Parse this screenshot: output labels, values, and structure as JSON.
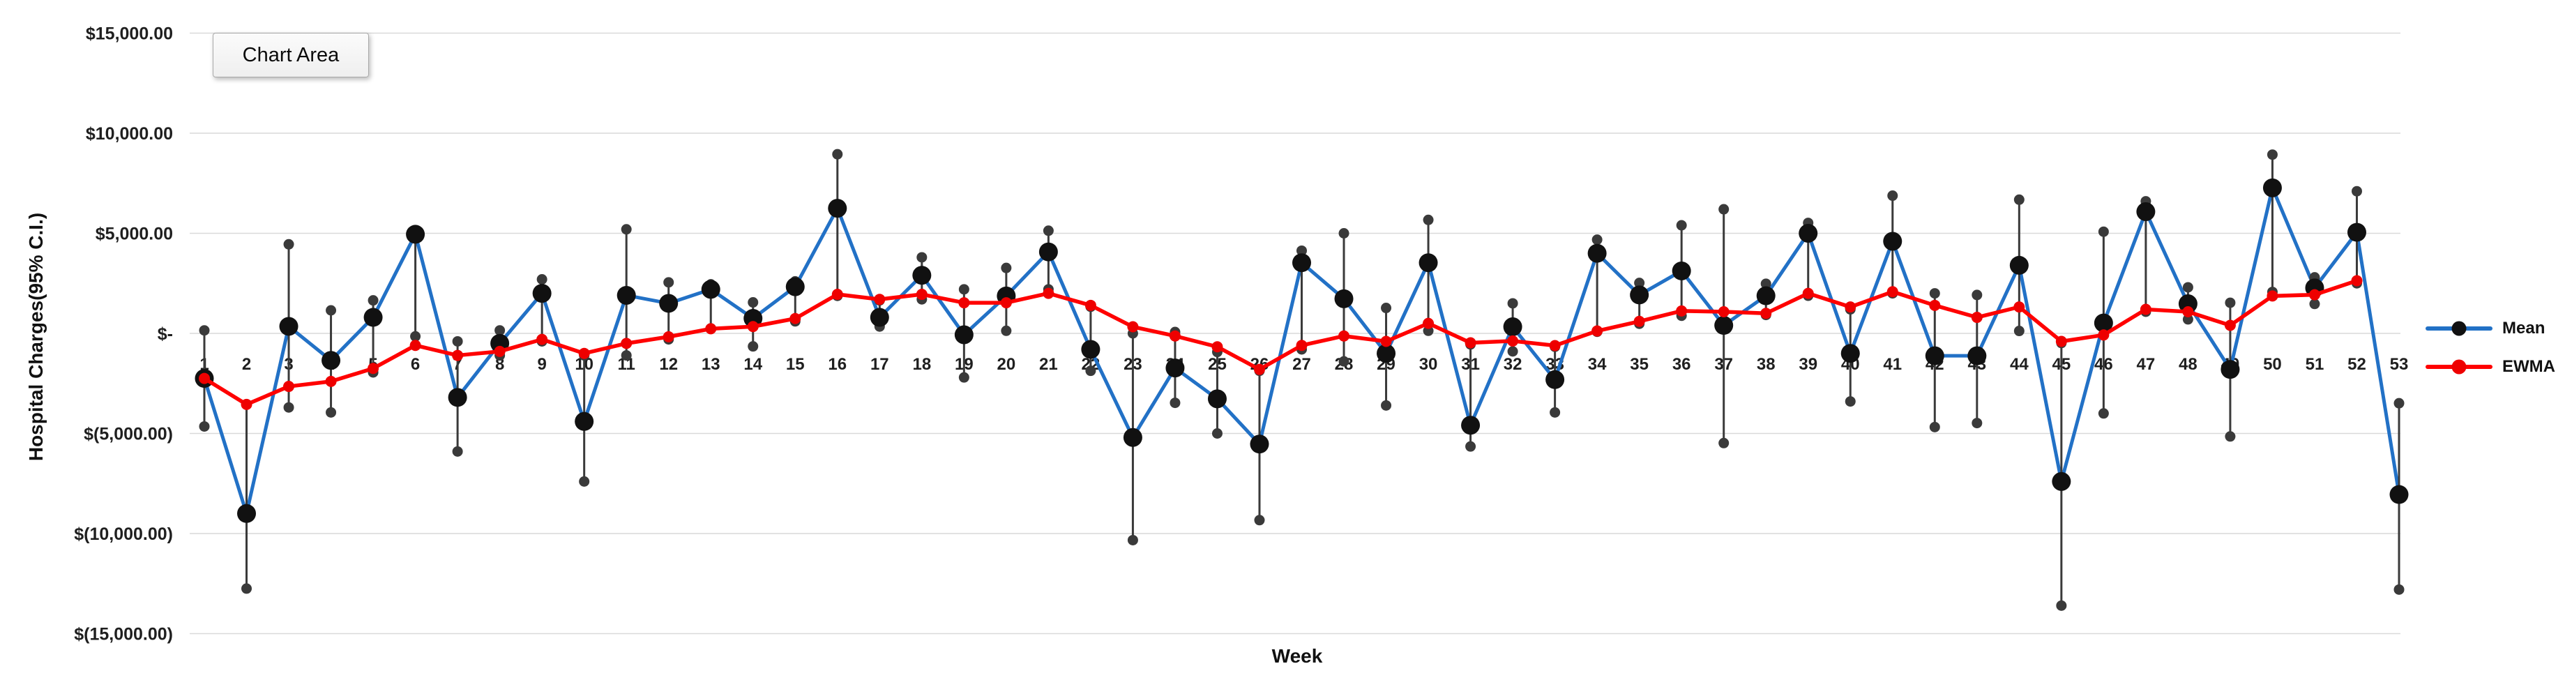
{
  "tooltip": {
    "text": "Chart Area"
  },
  "legend": {
    "items": [
      {
        "label": "Mean",
        "line_color": "#2271C6",
        "marker_color": "#111111"
      },
      {
        "label": "EWMA",
        "line_color": "#FF0000",
        "marker_color": "#EE0000"
      }
    ]
  },
  "colors": {
    "mean_line": "#2271C6",
    "mean_marker": "#111111",
    "ewma_line": "#FF0000",
    "ewma_marker": "#EE0000",
    "error_bar": "#3A3A3A",
    "gridline": "#D9D9D9",
    "tick_text": "#1F1F1F"
  },
  "chart_data": {
    "type": "line",
    "title": "",
    "xlabel": "Week",
    "ylabel": "Hospital Charges(95% C.I.)",
    "ylim": [
      -15000,
      15000
    ],
    "grid": true,
    "legend_position": "right",
    "y_ticks": [
      {
        "value": 15000,
        "label": "$15,000.00"
      },
      {
        "value": 10000,
        "label": "$10,000.00"
      },
      {
        "value": 5000,
        "label": "$5,000.00"
      },
      {
        "value": 0,
        "label": "$-"
      },
      {
        "value": -5000,
        "label": "$(5,000.00)"
      },
      {
        "value": -10000,
        "label": "$(10,000.00)"
      },
      {
        "value": -15000,
        "label": "$(15,000.00)"
      }
    ],
    "x": [
      1,
      2,
      3,
      4,
      5,
      6,
      7,
      8,
      9,
      10,
      11,
      12,
      13,
      14,
      15,
      16,
      17,
      18,
      19,
      20,
      21,
      22,
      23,
      24,
      25,
      26,
      27,
      28,
      29,
      30,
      31,
      32,
      33,
      34,
      35,
      36,
      37,
      38,
      39,
      40,
      41,
      42,
      43,
      44,
      45,
      46,
      47,
      48,
      49,
      50,
      51,
      52,
      53
    ],
    "series": [
      {
        "name": "Mean",
        "values": [
          -2250,
          -9000,
          350,
          -1350,
          800,
          4950,
          -3200,
          -500,
          2000,
          -4400,
          1900,
          1500,
          2200,
          750,
          2330,
          6250,
          800,
          2900,
          -70,
          1870,
          4070,
          -800,
          -5200,
          -1730,
          -3270,
          -5530,
          3530,
          1730,
          -1000,
          3530,
          -4590,
          330,
          -2310,
          4000,
          1920,
          3120,
          400,
          1880,
          5000,
          -1000,
          4600,
          -1120,
          -1120,
          3400,
          -7400,
          520,
          6080,
          1480,
          -1800,
          7270,
          2270,
          5050,
          -8050
        ],
        "ci_low": [
          -4650,
          -12750,
          -3700,
          -3950,
          -1950,
          -150,
          -5900,
          -1100,
          -400,
          -7400,
          -1100,
          -300,
          250,
          -650,
          600,
          1875,
          340,
          1700,
          -2200,
          130,
          2200,
          -1870,
          -10330,
          -3470,
          -5000,
          -9330,
          -800,
          -1400,
          -3600,
          130,
          -5650,
          -900,
          -3950,
          80,
          480,
          880,
          -5480,
          920,
          1880,
          -3400,
          2000,
          -4680,
          -4480,
          120,
          -13600,
          -4000,
          1080,
          700,
          -5150,
          2070,
          1470,
          2500,
          -12800
        ],
        "ci_high": [
          150,
          -3550,
          4450,
          1150,
          1650,
          5100,
          -400,
          150,
          2700,
          -1100,
          5200,
          2550,
          2450,
          1550,
          2600,
          8950,
          1650,
          3800,
          2200,
          3270,
          5130,
          1330,
          0,
          70,
          -930,
          -1870,
          4130,
          5000,
          1270,
          5670,
          -550,
          1500,
          -670,
          4680,
          2520,
          5400,
          6200,
          2480,
          5520,
          1200,
          6880,
          2000,
          1920,
          6680,
          -480,
          5080,
          6600,
          2300,
          1530,
          8930,
          2800,
          7100,
          -3490
        ]
      },
      {
        "name": "EWMA",
        "values": [
          -2250,
          -3550,
          -2650,
          -2400,
          -1750,
          -600,
          -1100,
          -900,
          -300,
          -1000,
          -500,
          -170,
          230,
          340,
          740,
          1950,
          1700,
          1950,
          1530,
          1530,
          2000,
          1400,
          330,
          -130,
          -670,
          -1800,
          -600,
          -130,
          -400,
          500,
          -470,
          -380,
          -610,
          120,
          600,
          1120,
          1080,
          1000,
          2000,
          1320,
          2080,
          1400,
          800,
          1320,
          -400,
          -80,
          1200,
          1080,
          400,
          1870,
          1930,
          2630,
          null
        ]
      }
    ]
  }
}
